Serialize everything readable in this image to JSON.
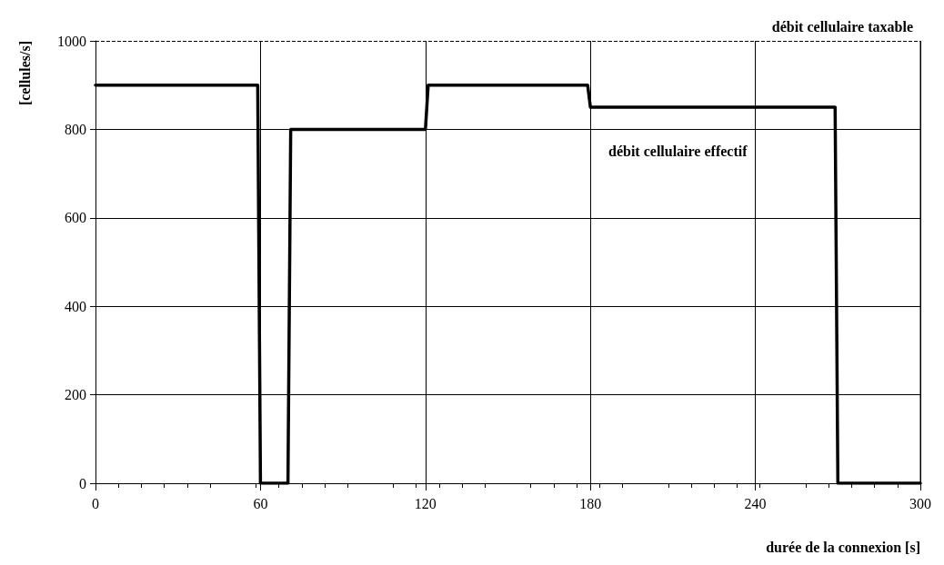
{
  "chart_data": {
    "type": "line",
    "xlabel": "durée de la connexion [s]",
    "ylabel": "[cellules/s]",
    "x": [
      0,
      59,
      60,
      70,
      71,
      120,
      121,
      179,
      180,
      269,
      270,
      300
    ],
    "series": [
      {
        "color": "#000000",
        "values": [
          900,
          900,
          0,
          0,
          800,
          800,
          900,
          900,
          850,
          850,
          0,
          0
        ]
      }
    ],
    "xlim": [
      0,
      300
    ],
    "xticks": [
      0,
      60,
      120,
      180,
      240,
      300
    ],
    "ylim": [
      0,
      1000
    ],
    "yticks": [
      0,
      200,
      400,
      600,
      800,
      1000
    ],
    "grid": true,
    "marker": "none",
    "line_style": "solid",
    "ref_lines": [
      {
        "axis": "y",
        "value": 1000,
        "label": "débit cellulaire taxable",
        "line_style": "dashed",
        "color": "#000000"
      }
    ],
    "annotations": [
      "débit cellulaire effectif"
    ]
  }
}
